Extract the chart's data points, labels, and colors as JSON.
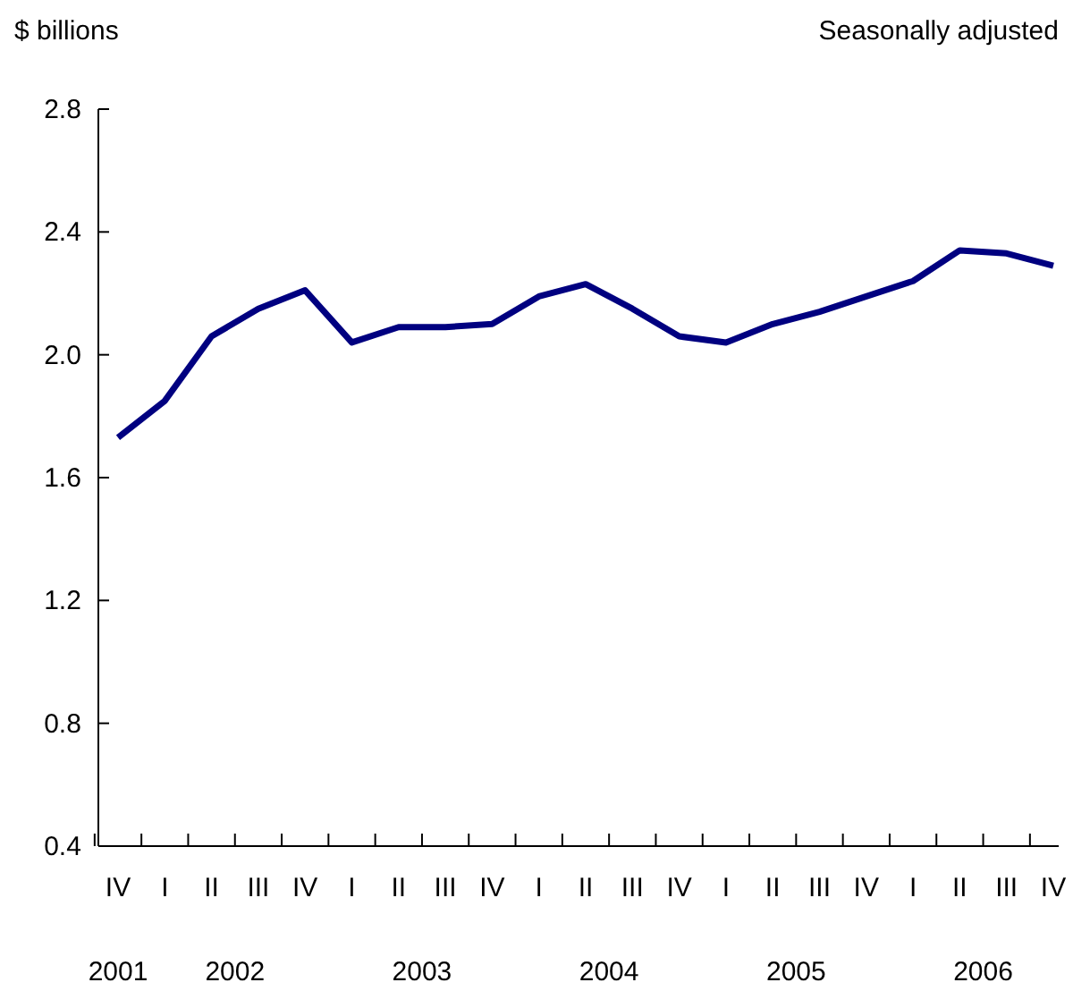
{
  "chart_data": {
    "type": "line",
    "ylabel": "$ billions",
    "subtitle": "Seasonally adjusted",
    "categories": [
      "IV",
      "I",
      "II",
      "III",
      "IV",
      "I",
      "II",
      "III",
      "IV",
      "I",
      "II",
      "III",
      "IV",
      "I",
      "II",
      "III",
      "IV",
      "I",
      "II",
      "III",
      "IV"
    ],
    "series": [
      {
        "color": "#000080",
        "values": [
          1.73,
          1.85,
          2.06,
          2.15,
          2.21,
          2.04,
          2.09,
          2.09,
          2.1,
          2.19,
          2.23,
          2.15,
          2.06,
          2.04,
          2.1,
          2.14,
          2.19,
          2.24,
          2.34,
          2.33,
          2.29
        ]
      }
    ],
    "annotations": [
      "2001",
      "2002",
      "2003",
      "2004",
      "2005",
      "2006"
    ],
    "ylim": [
      0.4,
      2.8
    ],
    "yticks": [
      0.4,
      0.8,
      1.2,
      1.6,
      {
        "value": 2,
        "label": "2.0"
      },
      2.4,
      2.8
    ],
    "grid": false,
    "marker": "none",
    "line_style": "solid"
  }
}
